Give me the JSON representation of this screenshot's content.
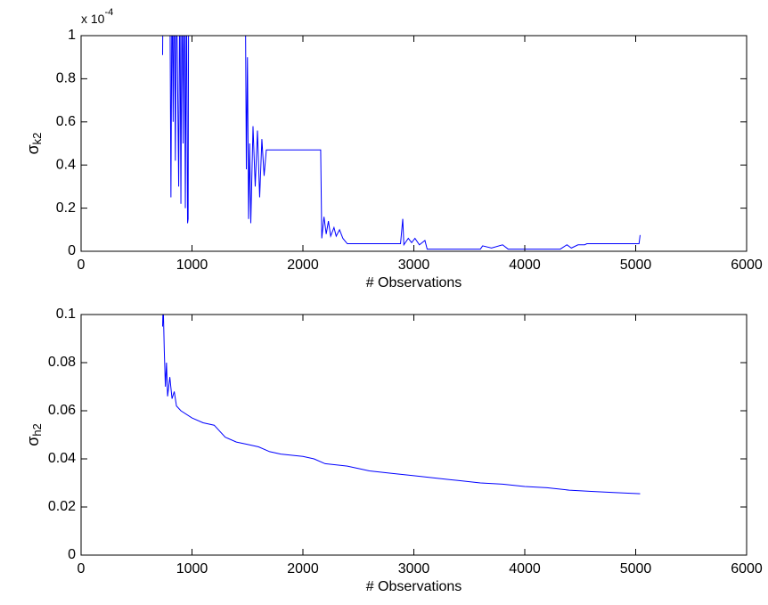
{
  "chart_data": [
    {
      "type": "line",
      "xlabel": "# Observations",
      "ylabel": "σ",
      "ylabel_sub": "k2",
      "y_multiplier": "x 10",
      "y_multiplier_exp": "-4",
      "color": "#0000ff",
      "xlim": [
        0,
        6000
      ],
      "xticks": [
        0,
        1000,
        2000,
        3000,
        4000,
        5000,
        6000
      ],
      "ylim": [
        0,
        1
      ],
      "yticks": [
        0,
        0.2,
        0.4,
        0.6,
        0.8,
        1
      ],
      "x": [
        735,
        740,
        800,
        810,
        820,
        830,
        840,
        850,
        860,
        880,
        890,
        900,
        910,
        920,
        930,
        940,
        950,
        960,
        965,
        970,
        1480,
        1490,
        1500,
        1510,
        1520,
        1530,
        1550,
        1570,
        1590,
        1610,
        1630,
        1650,
        1670,
        2160,
        2170,
        2190,
        2210,
        2230,
        2250,
        2280,
        2300,
        2330,
        2360,
        2400,
        2880,
        2900,
        2910,
        2950,
        2980,
        3010,
        3050,
        3100,
        3120,
        3600,
        3620,
        3700,
        3800,
        3850,
        4320,
        4380,
        4420,
        4480,
        4540,
        4560,
        5030,
        5040
      ],
      "values": [
        0.91,
        1.3,
        1.3,
        0.25,
        1.3,
        0.6,
        1.3,
        0.42,
        1.3,
        0.3,
        1.3,
        0.22,
        1.3,
        0.5,
        1.3,
        0.2,
        1.3,
        0.13,
        0.15,
        1.3,
        1.3,
        0.38,
        0.9,
        0.15,
        0.5,
        0.13,
        0.58,
        0.3,
        0.56,
        0.25,
        0.52,
        0.35,
        0.47,
        0.47,
        0.06,
        0.16,
        0.08,
        0.14,
        0.07,
        0.11,
        0.07,
        0.1,
        0.06,
        0.035,
        0.035,
        0.15,
        0.03,
        0.06,
        0.04,
        0.06,
        0.03,
        0.05,
        0.01,
        0.01,
        0.025,
        0.015,
        0.03,
        0.01,
        0.01,
        0.03,
        0.015,
        0.03,
        0.03,
        0.035,
        0.035,
        0.075
      ]
    },
    {
      "type": "line",
      "xlabel": "# Observations",
      "ylabel": "σ",
      "ylabel_sub": "h2",
      "color": "#0000ff",
      "xlim": [
        0,
        6000
      ],
      "xticks": [
        0,
        1000,
        2000,
        3000,
        4000,
        5000,
        6000
      ],
      "ylim": [
        0,
        0.1
      ],
      "yticks": [
        0,
        0.02,
        0.04,
        0.06,
        0.08,
        0.1
      ],
      "x": [
        735,
        740,
        750,
        760,
        770,
        780,
        800,
        820,
        840,
        860,
        900,
        1000,
        1100,
        1200,
        1300,
        1400,
        1500,
        1600,
        1700,
        1800,
        2000,
        2100,
        2200,
        2400,
        2600,
        2800,
        3000,
        3200,
        3400,
        3600,
        3800,
        4000,
        4200,
        4400,
        4600,
        4800,
        5040
      ],
      "values": [
        0.095,
        0.105,
        0.085,
        0.07,
        0.08,
        0.066,
        0.074,
        0.065,
        0.068,
        0.062,
        0.06,
        0.057,
        0.055,
        0.054,
        0.049,
        0.047,
        0.046,
        0.045,
        0.043,
        0.042,
        0.041,
        0.04,
        0.038,
        0.037,
        0.035,
        0.034,
        0.033,
        0.032,
        0.031,
        0.03,
        0.0295,
        0.0285,
        0.028,
        0.027,
        0.0265,
        0.026,
        0.0255
      ]
    }
  ]
}
